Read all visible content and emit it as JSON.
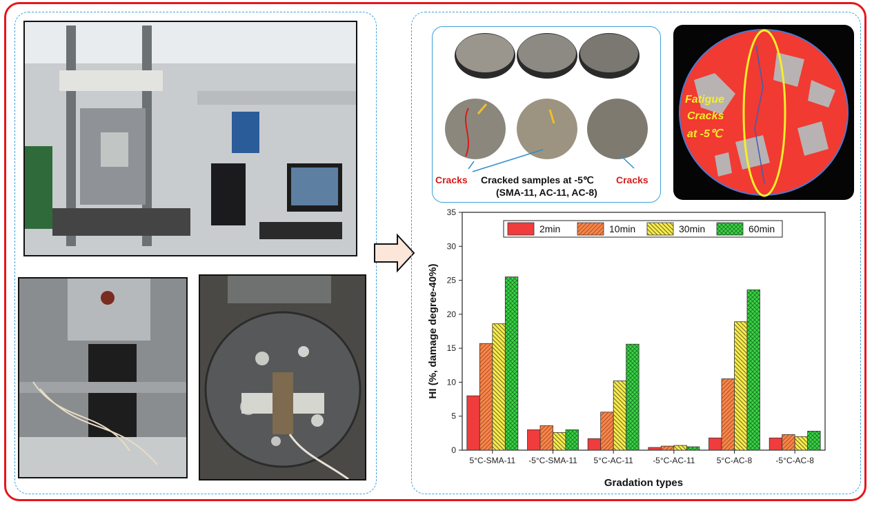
{
  "figure": {
    "samples_caption_line1": "Cracked samples at -5℃",
    "samples_caption_line2": "(SMA-11, AC-11, AC-8)",
    "cracks_label_left": "Cracks",
    "cracks_label_right": "Cracks",
    "fatigue_line1": "Fatigue",
    "fatigue_line2": "Cracks",
    "fatigue_line3": "at -5℃"
  },
  "colors": {
    "frame_red": "#e8141c",
    "dash_blue": "#3aa0d8",
    "series_2min": "#f03c3c",
    "series_10min": "#f4874b",
    "series_30min": "#f8ec4a",
    "series_60min": "#3cd646"
  },
  "chart_data": {
    "type": "bar",
    "categories": [
      "5°C-SMA-11",
      "-5°C-SMA-11",
      "5°C-AC-11",
      "-5°C-AC-11",
      "5°C-AC-8",
      "-5°C-AC-8"
    ],
    "series": [
      {
        "name": "2min",
        "values": [
          8.0,
          3.0,
          1.7,
          0.4,
          1.8,
          1.8
        ]
      },
      {
        "name": "10min",
        "values": [
          15.7,
          3.6,
          5.6,
          0.6,
          10.5,
          2.3
        ]
      },
      {
        "name": "30min",
        "values": [
          18.6,
          2.6,
          10.2,
          0.7,
          18.9,
          2.0
        ]
      },
      {
        "name": "60min",
        "values": [
          25.5,
          3.0,
          15.6,
          0.5,
          23.6,
          2.8
        ]
      }
    ],
    "xlabel": "Gradation types",
    "ylabel": "HI (%, damage degree-40%)",
    "ylim": [
      0,
      35
    ],
    "yticks": [
      "0",
      "5",
      "10",
      "15",
      "20",
      "25",
      "30",
      "35"
    ],
    "legend_position": "top"
  }
}
